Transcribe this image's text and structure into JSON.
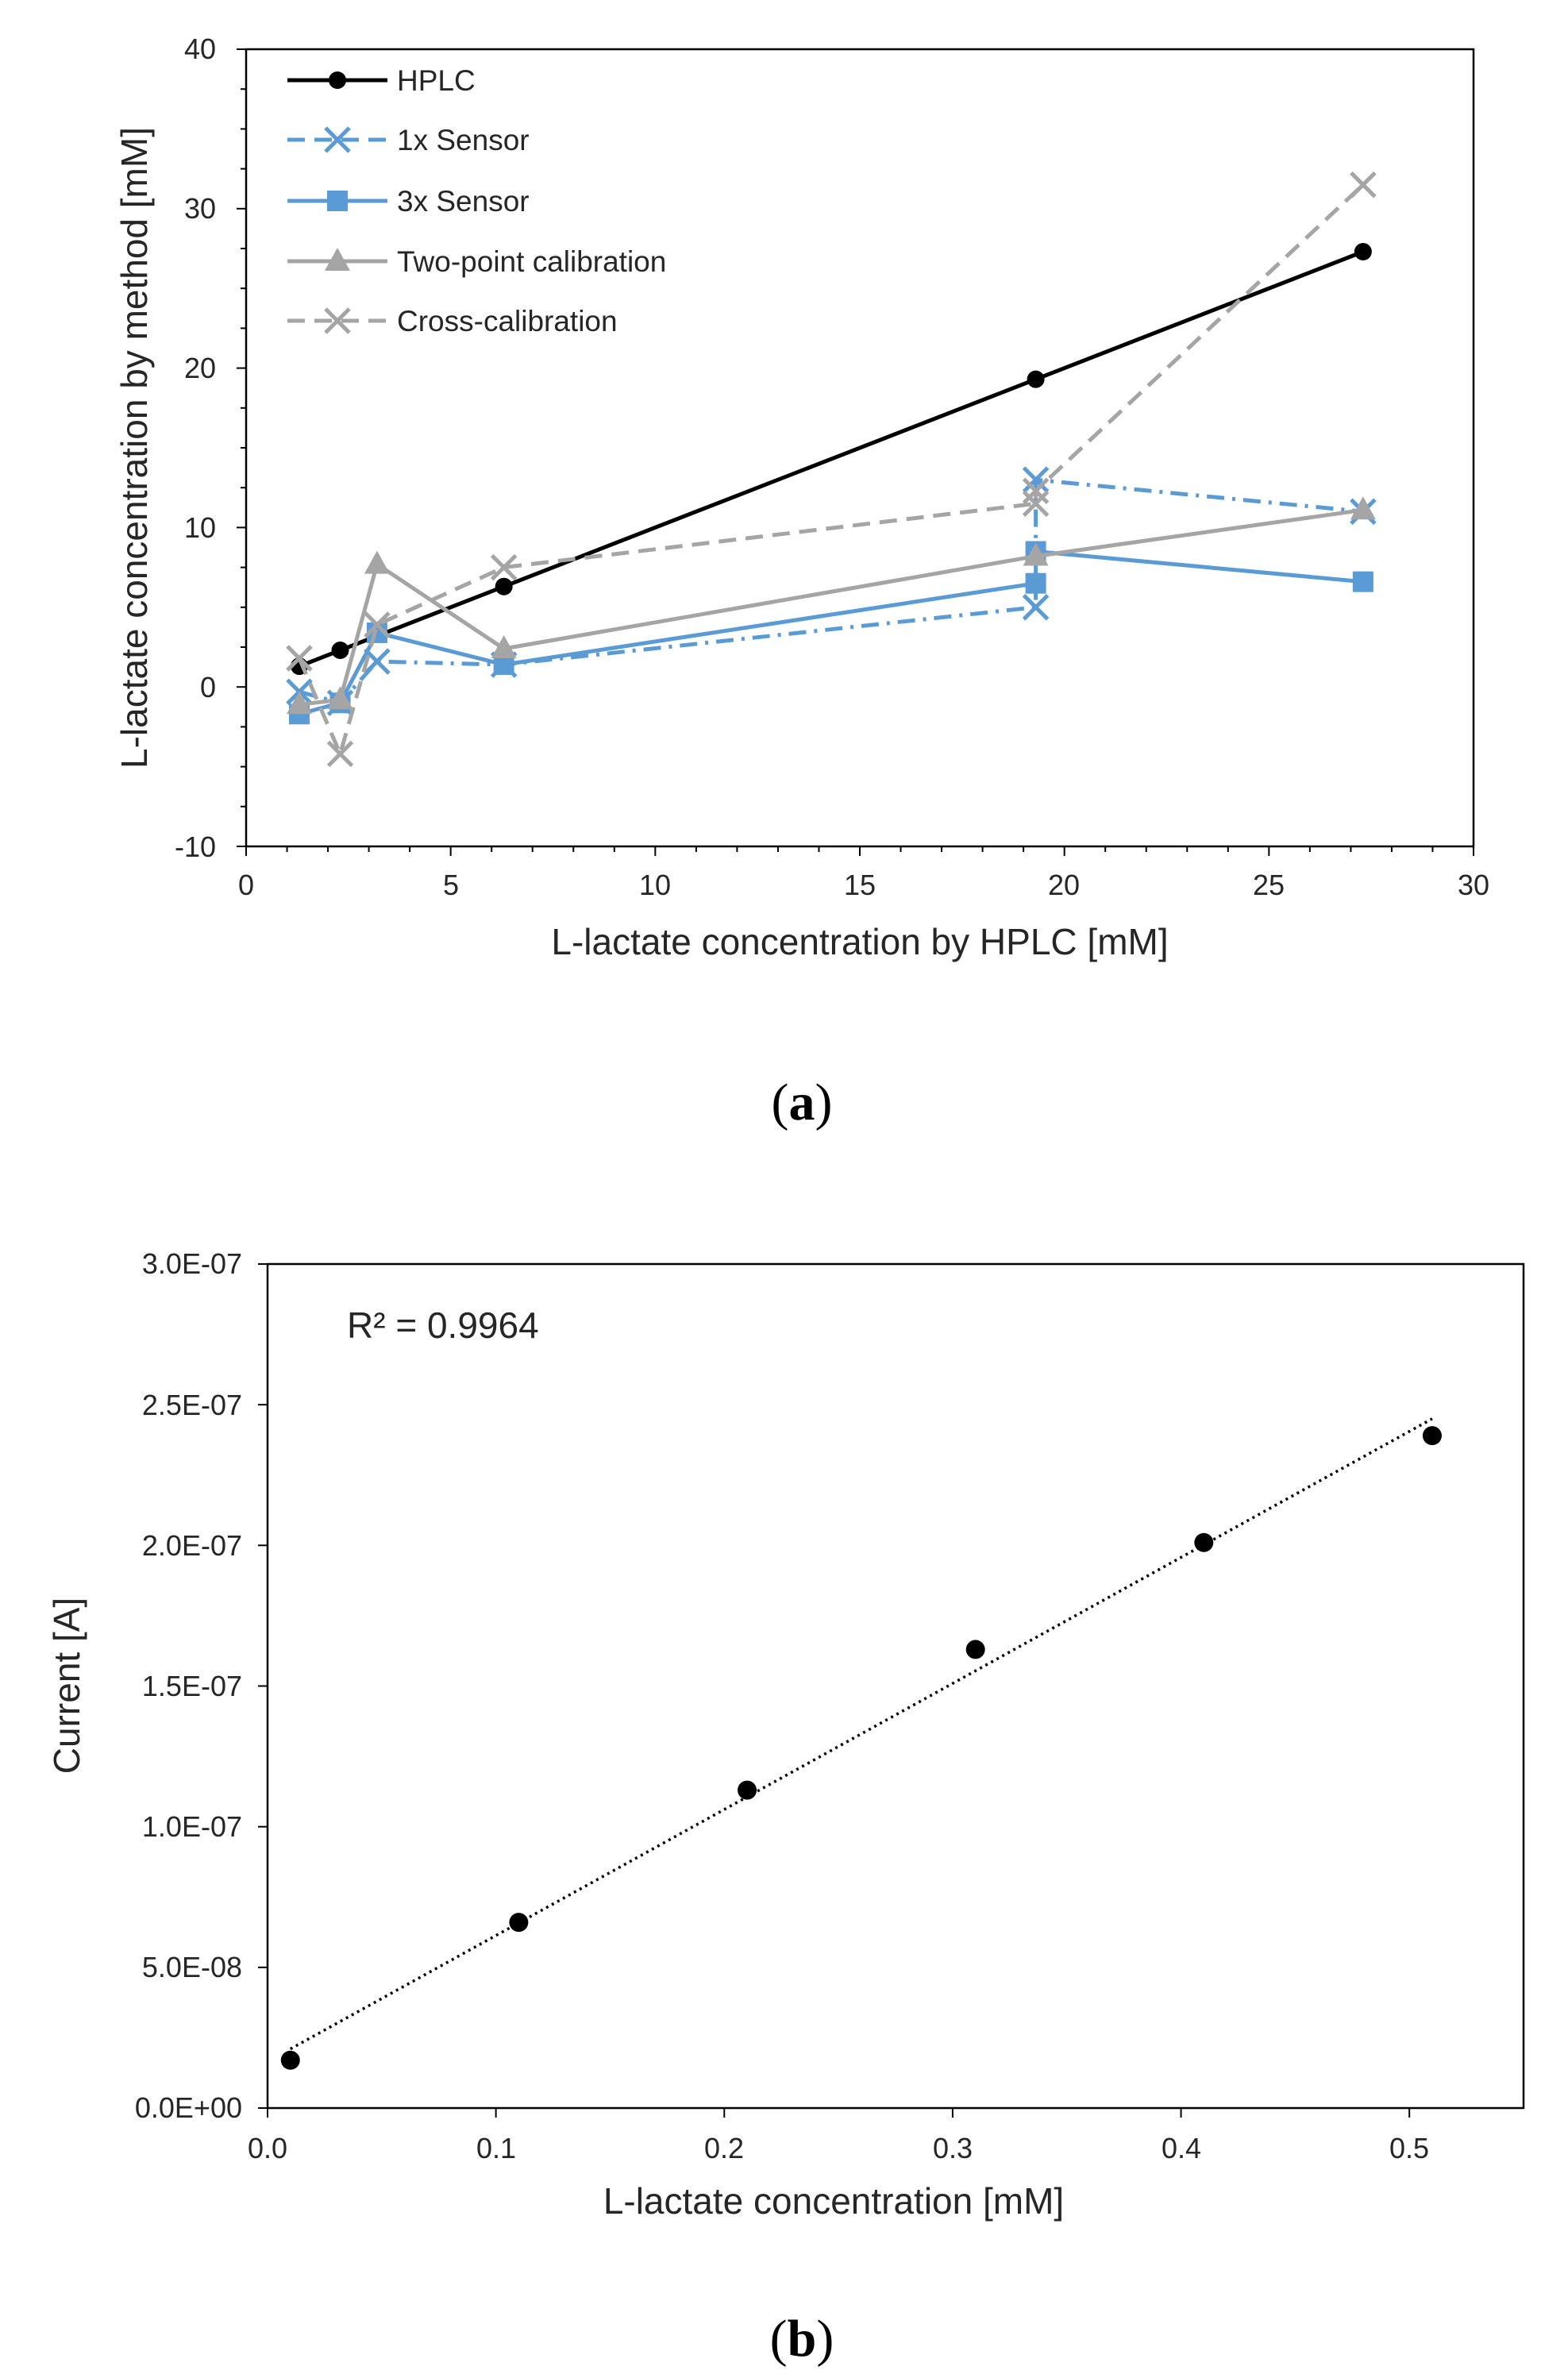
{
  "chart_data": [
    {
      "type": "line",
      "panel_label": "a",
      "title": "",
      "xlabel": "L-lactate concentration by HPLC [mM]",
      "ylabel": "L-lactate concentration by method [mM]",
      "xlim": [
        0,
        30
      ],
      "ylim": [
        -10,
        40
      ],
      "xticks": [
        "0",
        "5",
        "10",
        "15",
        "20",
        "25",
        "30"
      ],
      "yticks": [
        "-10",
        "0",
        "10",
        "20",
        "30",
        "40"
      ],
      "grid": false,
      "legend_position": "top-left",
      "series": [
        {
          "name": "HPLC",
          "color": "#000000",
          "dash": "solid",
          "marker": "circle",
          "points": [
            [
              1.3,
              1.3
            ],
            [
              2.3,
              2.3
            ],
            [
              6.3,
              6.3
            ],
            [
              19.3,
              19.3
            ],
            [
              27.3,
              27.3
            ]
          ]
        },
        {
          "name": "1x Sensor",
          "color": "#5B9BD5",
          "dash": "dashdot",
          "marker": "x",
          "points": [
            [
              1.3,
              -0.3
            ],
            [
              2.3,
              -1.0
            ],
            [
              3.2,
              1.6
            ],
            [
              6.3,
              1.4
            ],
            [
              19.3,
              5.0
            ],
            [
              19.3,
              13.0
            ],
            [
              27.3,
              11.0
            ]
          ]
        },
        {
          "name": "3x Sensor",
          "color": "#5B9BD5",
          "dash": "solid",
          "marker": "square",
          "points": [
            [
              1.3,
              -1.7
            ],
            [
              2.3,
              -1.0
            ],
            [
              3.2,
              3.4
            ],
            [
              6.3,
              1.4
            ],
            [
              19.3,
              6.5
            ],
            [
              19.3,
              8.5
            ],
            [
              27.3,
              6.6
            ]
          ]
        },
        {
          "name": "Two-point calibration",
          "color": "#A5A5A5",
          "dash": "solid",
          "marker": "triangle",
          "points": [
            [
              1.3,
              -1.1
            ],
            [
              2.3,
              -0.8
            ],
            [
              3.2,
              7.7
            ],
            [
              6.3,
              2.4
            ],
            [
              19.3,
              8.2
            ],
            [
              27.3,
              11.1
            ]
          ]
        },
        {
          "name": "Cross-calibration",
          "color": "#A5A5A5",
          "dash": "dashed",
          "marker": "x",
          "points": [
            [
              1.3,
              1.8
            ],
            [
              2.3,
              -4.2
            ],
            [
              3.2,
              3.9
            ],
            [
              6.3,
              7.5
            ],
            [
              19.3,
              11.5
            ],
            [
              19.3,
              12.3
            ],
            [
              27.3,
              31.5
            ]
          ]
        }
      ]
    },
    {
      "type": "scatter",
      "panel_label": "b",
      "title": "",
      "xlabel": "L-lactate concentration [mM]",
      "ylabel": "Current [A]",
      "xlim": [
        0,
        0.55
      ],
      "ylim": [
        0,
        3e-07
      ],
      "xticks": [
        "0.0",
        "0.1",
        "0.2",
        "0.3",
        "0.4",
        "0.5"
      ],
      "yticks": [
        "0.0E+00",
        "5.0E-08",
        "1.0E-07",
        "1.5E-07",
        "2.0E-07",
        "2.5E-07",
        "3.0E-07"
      ],
      "grid": false,
      "annotation": "R² = 0.9964",
      "series": [
        {
          "color": "#000000",
          "marker": "circle",
          "points": [
            [
              0.01,
              1.7e-08
            ],
            [
              0.11,
              6.6e-08
            ],
            [
              0.21,
              1.13e-07
            ],
            [
              0.31,
              1.63e-07
            ],
            [
              0.41,
              2.01e-07
            ],
            [
              0.51,
              2.39e-07
            ]
          ]
        }
      ],
      "trendline": {
        "color": "#000000",
        "dash": "dotted",
        "points": [
          [
            0.01,
            2.1e-08
          ],
          [
            0.51,
            2.45e-07
          ]
        ]
      }
    }
  ]
}
